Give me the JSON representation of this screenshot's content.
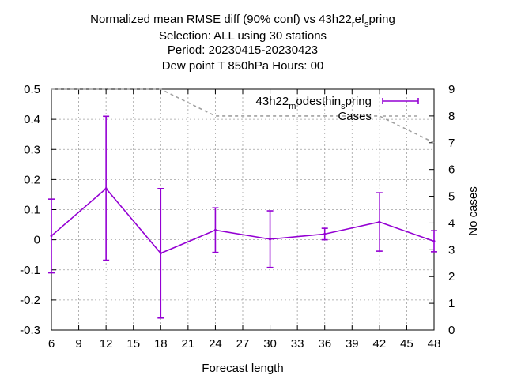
{
  "chart_data": {
    "type": "line",
    "title_lines": [
      "Normalized mean RMSE diff (90% conf) vs 43h22_ref_spring",
      "Selection: ALL using    30 stations",
      "Period: 20230415-20230423",
      "Dew point T 850hPa   Hours:  00"
    ],
    "xlabel": "Forecast length",
    "ylabel": "",
    "y2label": "No cases",
    "xlim": [
      6,
      48
    ],
    "ylim": [
      -0.3,
      0.5
    ],
    "y2lim": [
      0,
      9
    ],
    "x_ticks": [
      6,
      9,
      12,
      15,
      18,
      21,
      24,
      27,
      30,
      33,
      36,
      39,
      42,
      45,
      48
    ],
    "y_ticks": [
      "-0.3",
      "-0.2",
      "-0.1",
      "0",
      "0.1",
      "0.2",
      "0.3",
      "0.4",
      "0.5"
    ],
    "y2_ticks": [
      "0",
      "1",
      "2",
      "3",
      "4",
      "5",
      "6",
      "7",
      "8",
      "9"
    ],
    "grid": true,
    "legend_position": "top-right",
    "series": [
      {
        "name": "43h22_modesthin_spring",
        "axis": "left",
        "color": "#9400d3",
        "x": [
          6,
          12,
          18,
          24,
          30,
          36,
          42,
          48
        ],
        "y": [
          0.013,
          0.17,
          -0.045,
          0.032,
          0.002,
          0.019,
          0.059,
          -0.005
        ],
        "err_low": [
          -0.11,
          -0.068,
          -0.26,
          -0.042,
          -0.092,
          0.0,
          -0.038,
          -0.04
        ],
        "err_high": [
          0.135,
          0.41,
          0.17,
          0.106,
          0.096,
          0.038,
          0.156,
          0.03
        ]
      },
      {
        "name": "Cases",
        "axis": "right",
        "color": "#a0a0a0",
        "x": [
          6,
          12,
          18,
          24,
          30,
          36,
          42,
          48
        ],
        "y": [
          9,
          9,
          9,
          8,
          8,
          8,
          8,
          7
        ]
      }
    ]
  }
}
